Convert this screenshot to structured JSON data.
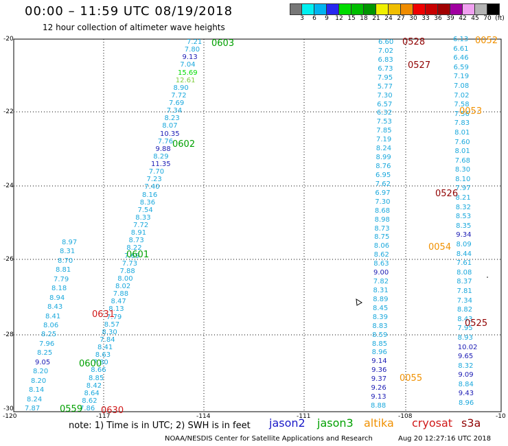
{
  "title": "00:00 – 11:59 UTC 08/19/2018",
  "subtitle": "12 hour collection of altimeter wave heights",
  "scale": {
    "colors": [
      "#777777",
      "#00f0f0",
      "#00b4f0",
      "#2828f0",
      "#00dc00",
      "#00be00",
      "#009600",
      "#f0f000",
      "#f0be00",
      "#f08c00",
      "#f00000",
      "#c80000",
      "#a00000",
      "#a000a0",
      "#f0a0f0",
      "#b4b4b4",
      "#000000"
    ],
    "ticks": [
      "3",
      "6",
      "9",
      "12",
      "15",
      "18",
      "21",
      "24",
      "27",
      "30",
      "33",
      "36",
      "39",
      "42",
      "45",
      "70",
      "(ft)"
    ]
  },
  "axes": {
    "x_ticks": [
      "-120",
      "-117",
      "-114",
      "-111",
      "-108",
      "-10"
    ],
    "y_ticks": [
      "-20",
      "-22",
      "-24",
      "-26",
      "-28",
      "-30"
    ]
  },
  "note": "note: 1) Time is in UTC; 2) SWH is in feet",
  "satellites": [
    {
      "name": "jason2",
      "color": "#1818c8"
    },
    {
      "name": "jason3",
      "color": "#00a000"
    },
    {
      "name": "altika",
      "color": "#f09000"
    },
    {
      "name": "cryosat",
      "color": "#d01818"
    },
    {
      "name": "s3a",
      "color": "#900000"
    }
  ],
  "credit": "NOAA/NESDIS Center for Satellite Applications and Research",
  "timestamp": "Aug 20 12:27:16 UTC 2018",
  "track_a": [
    "7.21",
    "7.80",
    "9.13",
    "7.04",
    "15.69",
    "12.61",
    "8.90",
    "7.72",
    "7.69",
    "7.34",
    "8.23",
    "8.07",
    "10.35",
    "7.76",
    "9.88",
    "8.29",
    "11.35",
    "7.70",
    "7.23",
    "7.40",
    "8.16",
    "8.36",
    "7.54",
    "8.33",
    "7.72",
    "8.91",
    "8.73",
    "8.22",
    "7.69",
    "7.73",
    "7.88",
    "8.00",
    "8.02",
    "7.88",
    "8.47",
    "8.13",
    "7.79",
    "8.57",
    "8.30",
    "7.84",
    "8.41",
    "8.63",
    "7.80",
    "8.66",
    "8.85",
    "8.42",
    "8.64",
    "8.62",
    "7.86"
  ],
  "track_a_left": [
    "8.97",
    "8.31",
    "8.70",
    "8.81",
    "7.79",
    "8.18",
    "8.94",
    "8.43",
    "8.41",
    "8.06",
    "8.25",
    "7.96",
    "8.25",
    "9.05",
    "8.20",
    "8.20",
    "8.14",
    "8.24",
    "7.87"
  ],
  "track_b": [
    "6.60",
    "7.02",
    "6.83",
    "6.73",
    "7.95",
    "5.77",
    "7.30",
    "6.57",
    "6.32",
    "7.53",
    "7.85",
    "7.19",
    "8.24",
    "8.99",
    "8.76",
    "6.95",
    "7.62",
    "6.97",
    "7.30",
    "8.68",
    "8.98",
    "8.73",
    "8.75",
    "8.06",
    "8.62",
    "8.63",
    "9.00",
    "7.82",
    "8.31",
    "8.89",
    "8.45",
    "8.39",
    "8.83",
    "8.59",
    "8.85",
    "8.96",
    "9.14",
    "9.36",
    "9.37",
    "9.26",
    "9.13",
    "8.88"
  ],
  "track_c": [
    "6.13",
    "6.61",
    "6.46",
    "6.59",
    "7.19",
    "7.08",
    "7.02",
    "7.58",
    "7.56",
    "7.83",
    "8.01",
    "7.60",
    "8.01",
    "7.68",
    "8.30",
    "8.10",
    "7.97",
    "8.21",
    "8.32",
    "8.53",
    "8.35",
    "9.34",
    "8.09",
    "8.44",
    "7.61",
    "8.08",
    "8.37",
    "7.81",
    "7.34",
    "8.82",
    "8.43",
    "7.95",
    "8.93",
    "10.02",
    "9.65",
    "8.32",
    "9.09",
    "8.84",
    "9.43",
    "8.96"
  ],
  "times": [
    {
      "t": "0603",
      "sat": "jason3"
    },
    {
      "t": "0602",
      "sat": "jason3"
    },
    {
      "t": "0601",
      "sat": "jason3"
    },
    {
      "t": "0600",
      "sat": "jason3"
    },
    {
      "t": "0559",
      "sat": "jason3"
    },
    {
      "t": "0631",
      "sat": "cryosat"
    },
    {
      "t": "0630",
      "sat": "cryosat"
    },
    {
      "t": "0528",
      "sat": "s3a"
    },
    {
      "t": "0527",
      "sat": "s3a"
    },
    {
      "t": "0526",
      "sat": "s3a"
    },
    {
      "t": "0525",
      "sat": "s3a"
    },
    {
      "t": "0052",
      "sat": "altika"
    },
    {
      "t": "0053",
      "sat": "altika"
    },
    {
      "t": "0054",
      "sat": "altika"
    },
    {
      "t": "0055",
      "sat": "altika"
    }
  ]
}
